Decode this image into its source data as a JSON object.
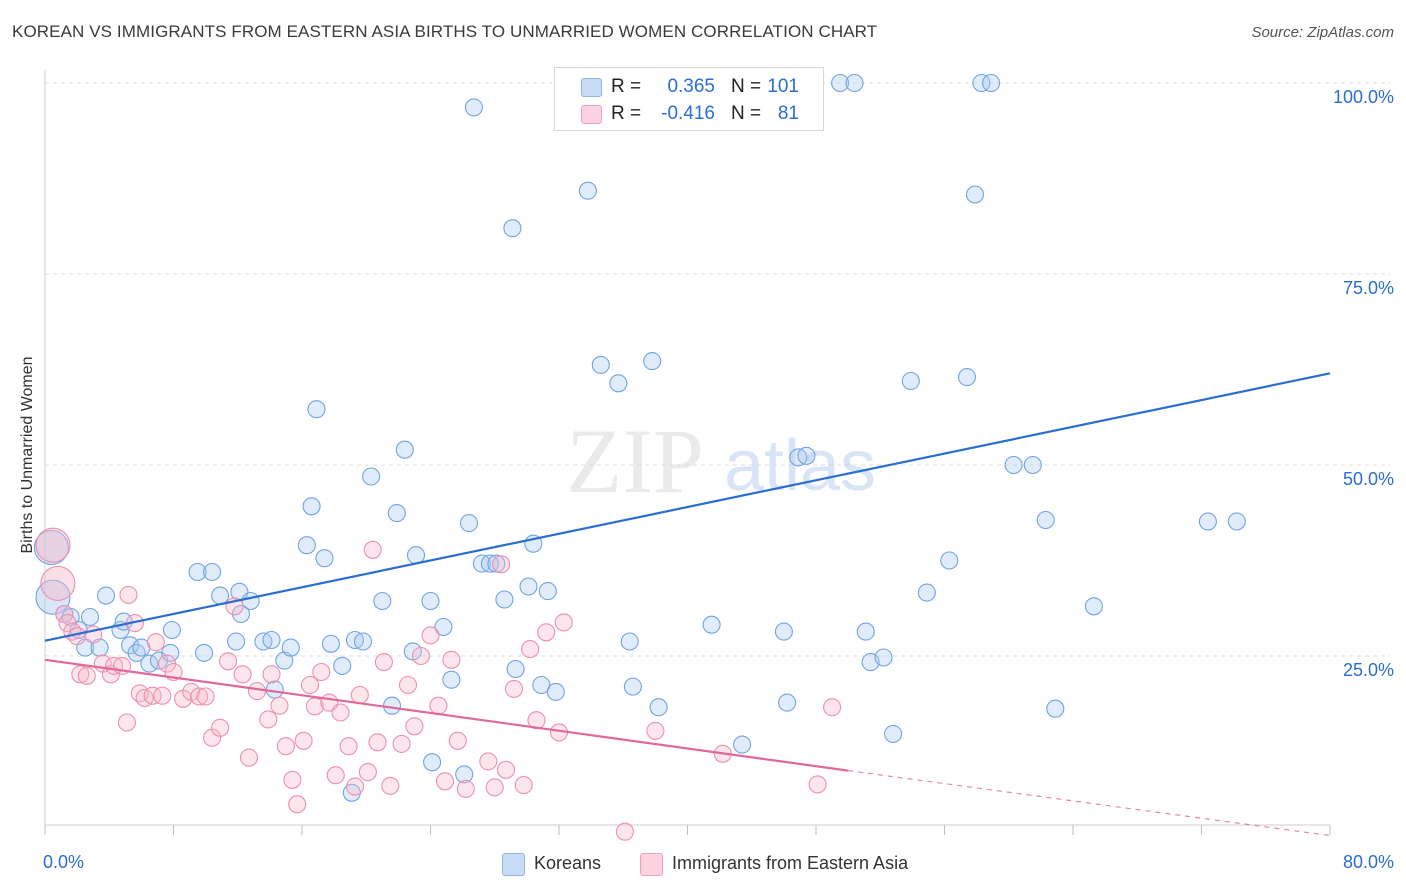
{
  "title": "KOREAN VS IMMIGRANTS FROM EASTERN ASIA BIRTHS TO UNMARRIED WOMEN CORRELATION CHART",
  "source": "Source: ZipAtlas.com",
  "watermark": {
    "zip": "ZIP",
    "atlas": "atlas"
  },
  "legend": {
    "rows": [
      {
        "r_label": "R =",
        "r_value": "0.365",
        "n_label": "N =",
        "n_value": "101",
        "color": "#a9c8f0"
      },
      {
        "r_label": "R =",
        "r_value": "-0.416",
        "n_label": "N =",
        "n_value": "81",
        "color": "#f7b8c9"
      }
    ]
  },
  "bottom_legend": [
    {
      "label": "Koreans",
      "color": "#a9c8f0"
    },
    {
      "label": "Immigrants from Eastern Asia",
      "color": "#f7b8c9"
    }
  ],
  "chart_data": {
    "type": "scatter",
    "title": "KOREAN VS IMMIGRANTS FROM EASTERN ASIA BIRTHS TO UNMARRIED WOMEN CORRELATION CHART",
    "xlabel": "",
    "ylabel": "Births to Unmarried Women",
    "x_tick_labels": [
      "0.0%",
      "80.0%"
    ],
    "y_tick_labels": [
      "25.0%",
      "50.0%",
      "75.0%",
      "100.0%"
    ],
    "xlim": [
      0,
      80
    ],
    "ylim": [
      0,
      103
    ],
    "grid": "horizontal dashed",
    "legend_position": "top-center",
    "series": [
      {
        "name": "Koreans",
        "color": "#6fa3e6",
        "trend": {
          "x0": 0,
          "y0": 27.0,
          "x1": 80,
          "y1": 62.0,
          "color": "#2a6ed1"
        },
        "points": [
          [
            0.4,
            39.2
          ],
          [
            0.5,
            32.7
          ],
          [
            1.2,
            30.5
          ],
          [
            1.6,
            30.1
          ],
          [
            2.8,
            30.1
          ],
          [
            2.1,
            28.4
          ],
          [
            2.5,
            26.1
          ],
          [
            3.4,
            26.1
          ],
          [
            3.8,
            32.9
          ],
          [
            4.7,
            28.4
          ],
          [
            4.9,
            29.5
          ],
          [
            5.3,
            26.4
          ],
          [
            5.7,
            25.4
          ],
          [
            6.0,
            26.1
          ],
          [
            6.5,
            24.0
          ],
          [
            7.1,
            24.4
          ],
          [
            7.9,
            28.4
          ],
          [
            7.8,
            25.4
          ],
          [
            9.5,
            36.0
          ],
          [
            10.4,
            36.0
          ],
          [
            9.9,
            25.4
          ],
          [
            10.9,
            32.9
          ],
          [
            11.9,
            26.9
          ],
          [
            12.1,
            33.4
          ],
          [
            12.2,
            30.5
          ],
          [
            12.8,
            32.2
          ],
          [
            13.6,
            26.9
          ],
          [
            14.1,
            27.1
          ],
          [
            14.3,
            20.6
          ],
          [
            14.9,
            24.4
          ],
          [
            15.3,
            26.1
          ],
          [
            16.3,
            39.5
          ],
          [
            16.6,
            44.6
          ],
          [
            16.9,
            57.3
          ],
          [
            17.4,
            37.8
          ],
          [
            17.8,
            26.6
          ],
          [
            18.5,
            23.7
          ],
          [
            19.3,
            27.1
          ],
          [
            19.8,
            26.9
          ],
          [
            20.3,
            48.5
          ],
          [
            21.0,
            32.2
          ],
          [
            21.6,
            18.5
          ],
          [
            21.9,
            43.7
          ],
          [
            22.4,
            52.0
          ],
          [
            22.9,
            25.6
          ],
          [
            23.1,
            38.2
          ],
          [
            24.0,
            32.2
          ],
          [
            24.1,
            11.1
          ],
          [
            24.8,
            28.8
          ],
          [
            25.3,
            21.9
          ],
          [
            26.1,
            9.5
          ],
          [
            26.4,
            42.4
          ],
          [
            26.7,
            96.8
          ],
          [
            27.2,
            37.1
          ],
          [
            27.7,
            37.1
          ],
          [
            28.1,
            37.1
          ],
          [
            28.6,
            32.4
          ],
          [
            29.1,
            81.0
          ],
          [
            29.3,
            23.3
          ],
          [
            30.1,
            34.1
          ],
          [
            30.4,
            39.7
          ],
          [
            30.9,
            21.2
          ],
          [
            31.3,
            33.5
          ],
          [
            31.8,
            20.3
          ],
          [
            33.4,
            100.0
          ],
          [
            33.8,
            85.9
          ],
          [
            34.6,
            63.1
          ],
          [
            35.7,
            60.7
          ],
          [
            36.4,
            26.9
          ],
          [
            36.6,
            21.0
          ],
          [
            37.8,
            63.6
          ],
          [
            38.2,
            18.3
          ],
          [
            40.7,
            100.0
          ],
          [
            41.5,
            29.1
          ],
          [
            43.4,
            13.4
          ],
          [
            46.0,
            28.2
          ],
          [
            46.2,
            18.9
          ],
          [
            46.9,
            51.0
          ],
          [
            47.4,
            51.2
          ],
          [
            49.5,
            100.0
          ],
          [
            50.4,
            100.0
          ],
          [
            51.1,
            28.2
          ],
          [
            51.4,
            24.2
          ],
          [
            52.2,
            24.8
          ],
          [
            52.8,
            14.8
          ],
          [
            53.9,
            61.0
          ],
          [
            54.9,
            33.3
          ],
          [
            56.3,
            37.5
          ],
          [
            57.4,
            61.5
          ],
          [
            57.9,
            85.4
          ],
          [
            58.3,
            100.0
          ],
          [
            58.9,
            100.0
          ],
          [
            60.3,
            50.0
          ],
          [
            61.5,
            50.0
          ],
          [
            62.3,
            42.8
          ],
          [
            62.9,
            18.1
          ],
          [
            65.3,
            31.5
          ],
          [
            72.4,
            42.6
          ],
          [
            74.2,
            42.6
          ],
          [
            19.1,
            7.1
          ],
          [
            42.2,
            100.0
          ]
        ]
      },
      {
        "name": "Immigrants from Eastern Asia",
        "color": "#f08db0",
        "trend": {
          "x0": 0,
          "y0": 24.5,
          "x1": 50,
          "y1": 10.0,
          "dash_to": [
            80,
            1.5
          ],
          "color": "#e0689a"
        },
        "points": [
          [
            0.5,
            39.5
          ],
          [
            0.8,
            34.5
          ],
          [
            1.2,
            30.5
          ],
          [
            1.4,
            29.3
          ],
          [
            1.7,
            28.2
          ],
          [
            2.0,
            27.6
          ],
          [
            2.2,
            22.6
          ],
          [
            2.6,
            22.4
          ],
          [
            3.0,
            27.8
          ],
          [
            3.6,
            24.0
          ],
          [
            4.1,
            22.6
          ],
          [
            4.3,
            23.7
          ],
          [
            4.8,
            23.7
          ],
          [
            5.1,
            16.3
          ],
          [
            5.6,
            29.3
          ],
          [
            5.9,
            20.1
          ],
          [
            6.2,
            19.5
          ],
          [
            6.7,
            19.8
          ],
          [
            6.9,
            26.8
          ],
          [
            7.3,
            19.8
          ],
          [
            7.6,
            24.0
          ],
          [
            8.0,
            22.9
          ],
          [
            8.6,
            19.4
          ],
          [
            9.1,
            20.3
          ],
          [
            9.6,
            19.7
          ],
          [
            10.0,
            19.7
          ],
          [
            10.4,
            14.3
          ],
          [
            10.9,
            15.6
          ],
          [
            11.4,
            24.3
          ],
          [
            11.8,
            31.5
          ],
          [
            12.3,
            22.6
          ],
          [
            12.7,
            11.7
          ],
          [
            13.2,
            20.4
          ],
          [
            13.9,
            16.7
          ],
          [
            14.1,
            22.6
          ],
          [
            14.6,
            18.5
          ],
          [
            15.0,
            13.2
          ],
          [
            15.4,
            8.8
          ],
          [
            15.7,
            5.6
          ],
          [
            16.1,
            13.9
          ],
          [
            16.5,
            21.2
          ],
          [
            16.8,
            18.4
          ],
          [
            17.2,
            22.9
          ],
          [
            17.7,
            18.9
          ],
          [
            18.1,
            9.4
          ],
          [
            18.4,
            17.6
          ],
          [
            18.9,
            13.2
          ],
          [
            19.3,
            7.9
          ],
          [
            19.6,
            19.9
          ],
          [
            20.1,
            9.8
          ],
          [
            20.4,
            38.9
          ],
          [
            20.7,
            13.7
          ],
          [
            21.1,
            24.2
          ],
          [
            21.5,
            8.0
          ],
          [
            22.2,
            13.5
          ],
          [
            22.6,
            21.2
          ],
          [
            23.0,
            15.8
          ],
          [
            23.4,
            25.0
          ],
          [
            24.0,
            27.7
          ],
          [
            24.5,
            18.5
          ],
          [
            24.9,
            8.6
          ],
          [
            25.3,
            24.5
          ],
          [
            25.7,
            13.9
          ],
          [
            26.2,
            7.6
          ],
          [
            27.6,
            11.2
          ],
          [
            28.0,
            7.8
          ],
          [
            28.4,
            37.0
          ],
          [
            28.7,
            10.1
          ],
          [
            29.2,
            20.7
          ],
          [
            29.8,
            8.1
          ],
          [
            30.2,
            25.9
          ],
          [
            30.6,
            16.6
          ],
          [
            31.2,
            28.1
          ],
          [
            32.0,
            15.0
          ],
          [
            32.3,
            29.4
          ],
          [
            36.1,
            2.0
          ],
          [
            38.0,
            15.2
          ],
          [
            42.2,
            12.2
          ],
          [
            48.1,
            8.2
          ],
          [
            49.0,
            18.3
          ],
          [
            5.2,
            33.0
          ]
        ]
      }
    ]
  }
}
